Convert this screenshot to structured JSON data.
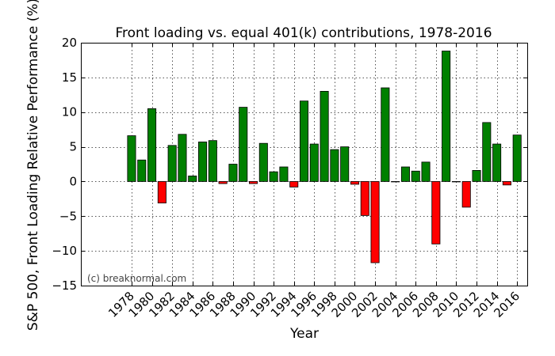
{
  "chart_data": {
    "type": "bar",
    "title": "Front loading vs. equal 401(k) contributions, 1978-2016",
    "xlabel": "Year",
    "ylabel": "S&P 500, Front Loading Relative Performance (%)",
    "ylim": [
      -15,
      20
    ],
    "yticks": [
      -15,
      -10,
      -5,
      0,
      5,
      10,
      15,
      20
    ],
    "xlim": [
      1973,
      2017
    ],
    "xticks": [
      1978,
      1980,
      1982,
      1984,
      1986,
      1988,
      1990,
      1992,
      1994,
      1996,
      1998,
      2000,
      2002,
      2004,
      2006,
      2008,
      2010,
      2012,
      2014,
      2016
    ],
    "grid": true,
    "positive_color": "#008000",
    "negative_color": "#ff0000",
    "annotation": "(c) breaknormal.com",
    "x": [
      1978,
      1979,
      1980,
      1981,
      1982,
      1983,
      1984,
      1985,
      1986,
      1987,
      1988,
      1989,
      1990,
      1991,
      1992,
      1993,
      1994,
      1995,
      1996,
      1997,
      1998,
      1999,
      2000,
      2001,
      2002,
      2003,
      2004,
      2005,
      2006,
      2007,
      2008,
      2009,
      2010,
      2011,
      2012,
      2013,
      2014,
      2015,
      2016
    ],
    "values": [
      6.6,
      3.1,
      10.5,
      -3.1,
      5.2,
      6.8,
      0.8,
      5.7,
      5.9,
      -0.3,
      2.5,
      10.7,
      -0.3,
      5.5,
      1.4,
      2.1,
      -0.8,
      11.6,
      5.4,
      13.0,
      4.6,
      5.0,
      -0.4,
      -4.9,
      -11.7,
      13.5,
      0.0,
      2.1,
      1.5,
      2.8,
      -9.0,
      18.8,
      0.0,
      -3.7,
      1.6,
      8.5,
      5.4,
      -0.5,
      6.7
    ]
  }
}
